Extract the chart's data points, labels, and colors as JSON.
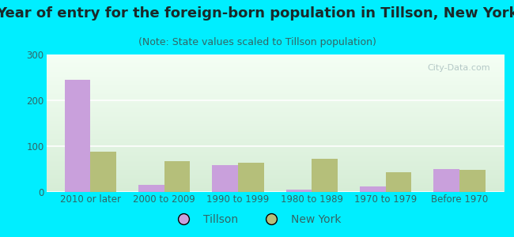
{
  "title": "Year of entry for the foreign-born population in Tillson, New York",
  "subtitle": "(Note: State values scaled to Tillson population)",
  "categories": [
    "2010 or later",
    "2000 to 2009",
    "1990 to 1999",
    "1980 to 1989",
    "1970 to 1979",
    "Before 1970"
  ],
  "tillson_values": [
    245,
    15,
    58,
    6,
    12,
    50
  ],
  "newyork_values": [
    88,
    68,
    63,
    73,
    43,
    48
  ],
  "tillson_color": "#c9a0dc",
  "newyork_color": "#b5bf7a",
  "background_outer": "#00eeff",
  "background_inner": "#eef8ee",
  "ylim": [
    0,
    300
  ],
  "yticks": [
    0,
    100,
    200,
    300
  ],
  "bar_width": 0.35,
  "title_fontsize": 13,
  "subtitle_fontsize": 9,
  "tick_fontsize": 8.5,
  "legend_fontsize": 10,
  "watermark_text": "City-Data.com",
  "watermark_color": "#aabfbf",
  "title_color": "#1a2a2a",
  "subtitle_color": "#336666",
  "tick_color": "#336666",
  "grid_color": "#ffffff",
  "gradient_top": "#f5fdf5",
  "gradient_bottom": "#d8eed8"
}
